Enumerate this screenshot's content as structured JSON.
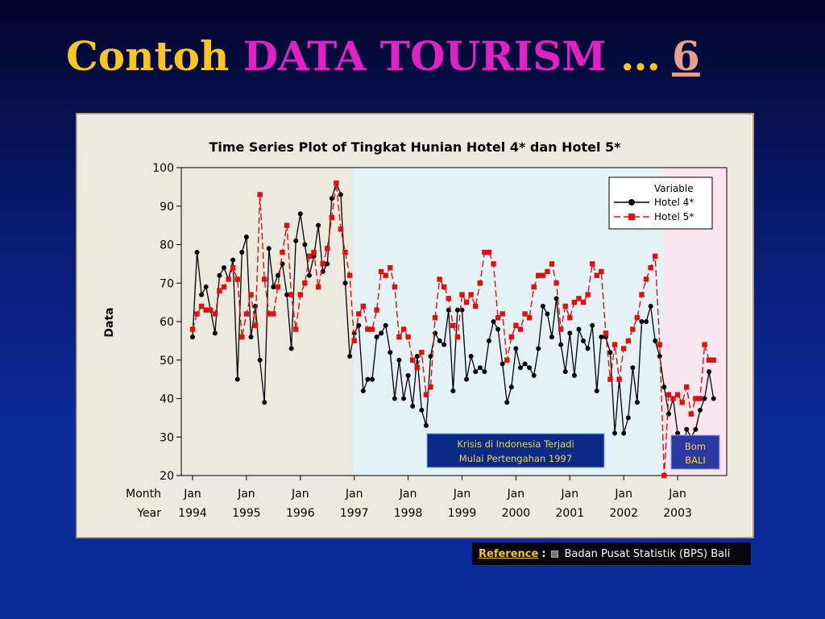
{
  "slide": {
    "title_part1": "Contoh",
    "title_part2": "DATA TOURISM",
    "title_part3": "…",
    "title_part4": "6"
  },
  "reference": {
    "label": "Reference",
    "colon": ":",
    "text": "Badan Pusat Statistik (BPS) Bali"
  },
  "chart_data": {
    "type": "line",
    "title": "Time Series Plot of Tingkat Hunian Hotel 4* dan Hotel 5*",
    "ylabel": "Data",
    "ylim": [
      20,
      100
    ],
    "yticks": [
      20,
      30,
      40,
      50,
      60,
      70,
      80,
      90,
      100
    ],
    "x_start": "1994-01",
    "x_tick_row1_label": "Month",
    "x_tick_row2_label": "Year",
    "x_ticks": [
      {
        "month": "Jan",
        "year": "1994"
      },
      {
        "month": "Jan",
        "year": "1995"
      },
      {
        "month": "Jan",
        "year": "1996"
      },
      {
        "month": "Jan",
        "year": "1997"
      },
      {
        "month": "Jan",
        "year": "1998"
      },
      {
        "month": "Jan",
        "year": "1999"
      },
      {
        "month": "Jan",
        "year": "2000"
      },
      {
        "month": "Jan",
        "year": "2001"
      },
      {
        "month": "Jan",
        "year": "2002"
      },
      {
        "month": "Jan",
        "year": "2003"
      }
    ],
    "legend": {
      "title": "Variable",
      "placement": "top-right"
    },
    "series": [
      {
        "name": "Hotel 4*",
        "color": "#000000",
        "line_style": "solid",
        "marker": "circle",
        "values": [
          56,
          78,
          67,
          69,
          63,
          57,
          72,
          74,
          71,
          76,
          45,
          78,
          82,
          56,
          64,
          50,
          39,
          79,
          69,
          72,
          75,
          67,
          53,
          81,
          88,
          80,
          72,
          77,
          85,
          73,
          75,
          92,
          96,
          93,
          70,
          51,
          57,
          59,
          42,
          45,
          45,
          56,
          57,
          59,
          52,
          40,
          50,
          40,
          46,
          38,
          51,
          37,
          33,
          51,
          57,
          55,
          54,
          63,
          42,
          63,
          63,
          45,
          51,
          47,
          48,
          47,
          55,
          60,
          58,
          49,
          39,
          43,
          53,
          48,
          49,
          48,
          46,
          53,
          64,
          62,
          56,
          66,
          54,
          47,
          57,
          46,
          58,
          55,
          53,
          59,
          42,
          56,
          56,
          52,
          31,
          45,
          31,
          35,
          48,
          39,
          60,
          60,
          64,
          55,
          51,
          43,
          36,
          40,
          31,
          24,
          32,
          30,
          32,
          37,
          40,
          47,
          40
        ]
      },
      {
        "name": "Hotel 5*",
        "color": "#e01010",
        "line_style": "dashed",
        "marker": "square",
        "values": [
          58,
          62,
          64,
          63,
          63,
          62,
          68,
          69,
          71,
          74,
          71,
          56,
          62,
          67,
          59,
          93,
          71,
          62,
          62,
          69,
          78,
          85,
          67,
          58,
          67,
          70,
          77,
          78,
          69,
          75,
          79,
          87,
          96,
          84,
          78,
          72,
          55,
          62,
          64,
          58,
          58,
          63,
          73,
          72,
          74,
          69,
          56,
          58,
          56,
          50,
          48,
          52,
          41,
          43,
          61,
          71,
          69,
          66,
          59,
          56,
          67,
          65,
          67,
          64,
          70,
          78,
          78,
          75,
          61,
          62,
          50,
          56,
          59,
          58,
          62,
          61,
          69,
          72,
          72,
          73,
          75,
          70,
          58,
          64,
          61,
          65,
          66,
          65,
          67,
          75,
          72,
          73,
          57,
          45,
          54,
          45,
          53,
          55,
          58,
          61,
          67,
          71,
          74,
          77,
          54,
          20,
          41,
          40,
          41,
          39,
          43,
          36,
          40,
          40,
          54,
          50,
          50
        ]
      }
    ],
    "annotations": [
      {
        "text_line1": "Krisis di Indonesia Terjadi",
        "text_line2": "Mulai Pertengahan 1997"
      },
      {
        "text_line1": "Bom",
        "text_line2": "BALI"
      }
    ],
    "shaded_regions": [
      {
        "from": "1997-01",
        "to": "2002-10",
        "color": "#e4f2f6"
      },
      {
        "from": "2002-10",
        "to": "2003-12",
        "color": "#fae6ee"
      }
    ]
  }
}
